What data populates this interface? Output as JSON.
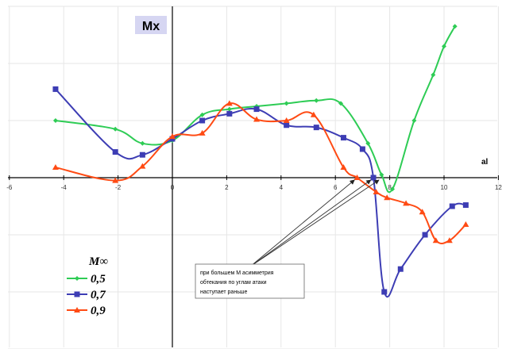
{
  "chart_data": {
    "type": "line",
    "title": "Mx",
    "xlabel": "al",
    "ylabel": "",
    "xlim": [
      -6,
      12
    ],
    "ylim": [
      -3,
      3
    ],
    "x_ticks": [
      "-6",
      "-4",
      "-2",
      "0",
      "2",
      "4",
      "6",
      "8",
      "10",
      "12"
    ],
    "grid": true,
    "legend": {
      "title": "M∞",
      "placement": "bottom-left"
    },
    "series": [
      {
        "name": "0,5",
        "color": "#2ecc55",
        "marker": "diamond",
        "points": [
          [
            -4.3,
            1.0
          ],
          [
            -2.1,
            0.85
          ],
          [
            -1.1,
            0.6
          ],
          [
            0,
            0.65
          ],
          [
            1.1,
            1.1
          ],
          [
            2.1,
            1.2
          ],
          [
            3.1,
            1.25
          ],
          [
            4.2,
            1.3
          ],
          [
            5.3,
            1.35
          ],
          [
            6.2,
            1.3
          ],
          [
            7.2,
            0.6
          ],
          [
            7.7,
            0.05
          ],
          [
            8.1,
            -0.2
          ],
          [
            8.9,
            1.0
          ],
          [
            9.6,
            1.8
          ],
          [
            10.0,
            2.3
          ],
          [
            10.4,
            2.65
          ]
        ]
      },
      {
        "name": "0,7",
        "color": "#3d3db4",
        "marker": "square",
        "points": [
          [
            -4.3,
            1.55
          ],
          [
            -2.1,
            0.45
          ],
          [
            -1.1,
            0.4
          ],
          [
            0,
            0.68
          ],
          [
            1.1,
            1.0
          ],
          [
            2.1,
            1.12
          ],
          [
            3.1,
            1.2
          ],
          [
            4.2,
            0.92
          ],
          [
            5.3,
            0.88
          ],
          [
            6.3,
            0.7
          ],
          [
            7.0,
            0.5
          ],
          [
            7.4,
            0.0
          ],
          [
            7.8,
            -2.0
          ],
          [
            8.4,
            -1.6
          ],
          [
            9.3,
            -1.0
          ],
          [
            10.3,
            -0.5
          ],
          [
            10.8,
            -0.48
          ]
        ]
      },
      {
        "name": "0,9",
        "color": "#ff4b14",
        "marker": "triangle",
        "points": [
          [
            -4.3,
            0.18
          ],
          [
            -2.1,
            -0.05
          ],
          [
            -1.1,
            0.2
          ],
          [
            0,
            0.72
          ],
          [
            1.1,
            0.78
          ],
          [
            2.1,
            1.3
          ],
          [
            3.1,
            1.02
          ],
          [
            4.2,
            1.0
          ],
          [
            5.2,
            1.1
          ],
          [
            6.3,
            0.18
          ],
          [
            6.8,
            0.0
          ],
          [
            7.5,
            -0.25
          ],
          [
            7.9,
            -0.35
          ],
          [
            8.6,
            -0.45
          ],
          [
            9.2,
            -0.6
          ],
          [
            9.7,
            -1.1
          ],
          [
            10.2,
            -1.1
          ],
          [
            10.8,
            -0.82
          ]
        ]
      }
    ],
    "annotation": {
      "lines": [
        "при большем  М асимметрия",
        "обтекания  по  углам атаки",
        "наступает раньше"
      ],
      "targets": [
        [
          6.7,
          0.0
        ],
        [
          7.3,
          0.0
        ],
        [
          7.6,
          0.0
        ]
      ]
    }
  }
}
